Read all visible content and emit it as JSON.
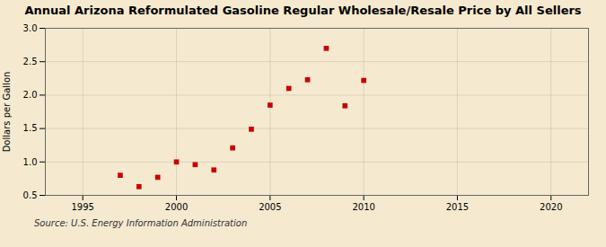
{
  "chart_data": {
    "type": "scatter",
    "title": "Annual Arizona Reformulated Gasoline Regular Wholesale/Resale Price by All Sellers",
    "ylabel": "Dollars per Gallon",
    "caption": "Source: U.S. Energy Information Administration",
    "x": [
      1997,
      1998,
      1999,
      2000,
      2001,
      2002,
      2003,
      2004,
      2005,
      2006,
      2007,
      2008,
      2009,
      2010
    ],
    "values": [
      0.8,
      0.63,
      0.77,
      1.0,
      0.96,
      0.88,
      1.21,
      1.49,
      1.85,
      2.1,
      2.23,
      2.7,
      1.84,
      2.22
    ],
    "color": "#cc0000",
    "marker": "square",
    "xlim": [
      1993,
      2022
    ],
    "xticks": [
      1995,
      2000,
      2005,
      2010,
      2015,
      2020
    ],
    "ylim": [
      0.5,
      3.0
    ],
    "yticks": [
      0.5,
      {
        "value": 1,
        "label": "1.0"
      },
      1.5,
      {
        "value": 2,
        "label": "2.0"
      },
      2.5,
      {
        "value": 3,
        "label": "3.0"
      }
    ],
    "grid": true
  }
}
